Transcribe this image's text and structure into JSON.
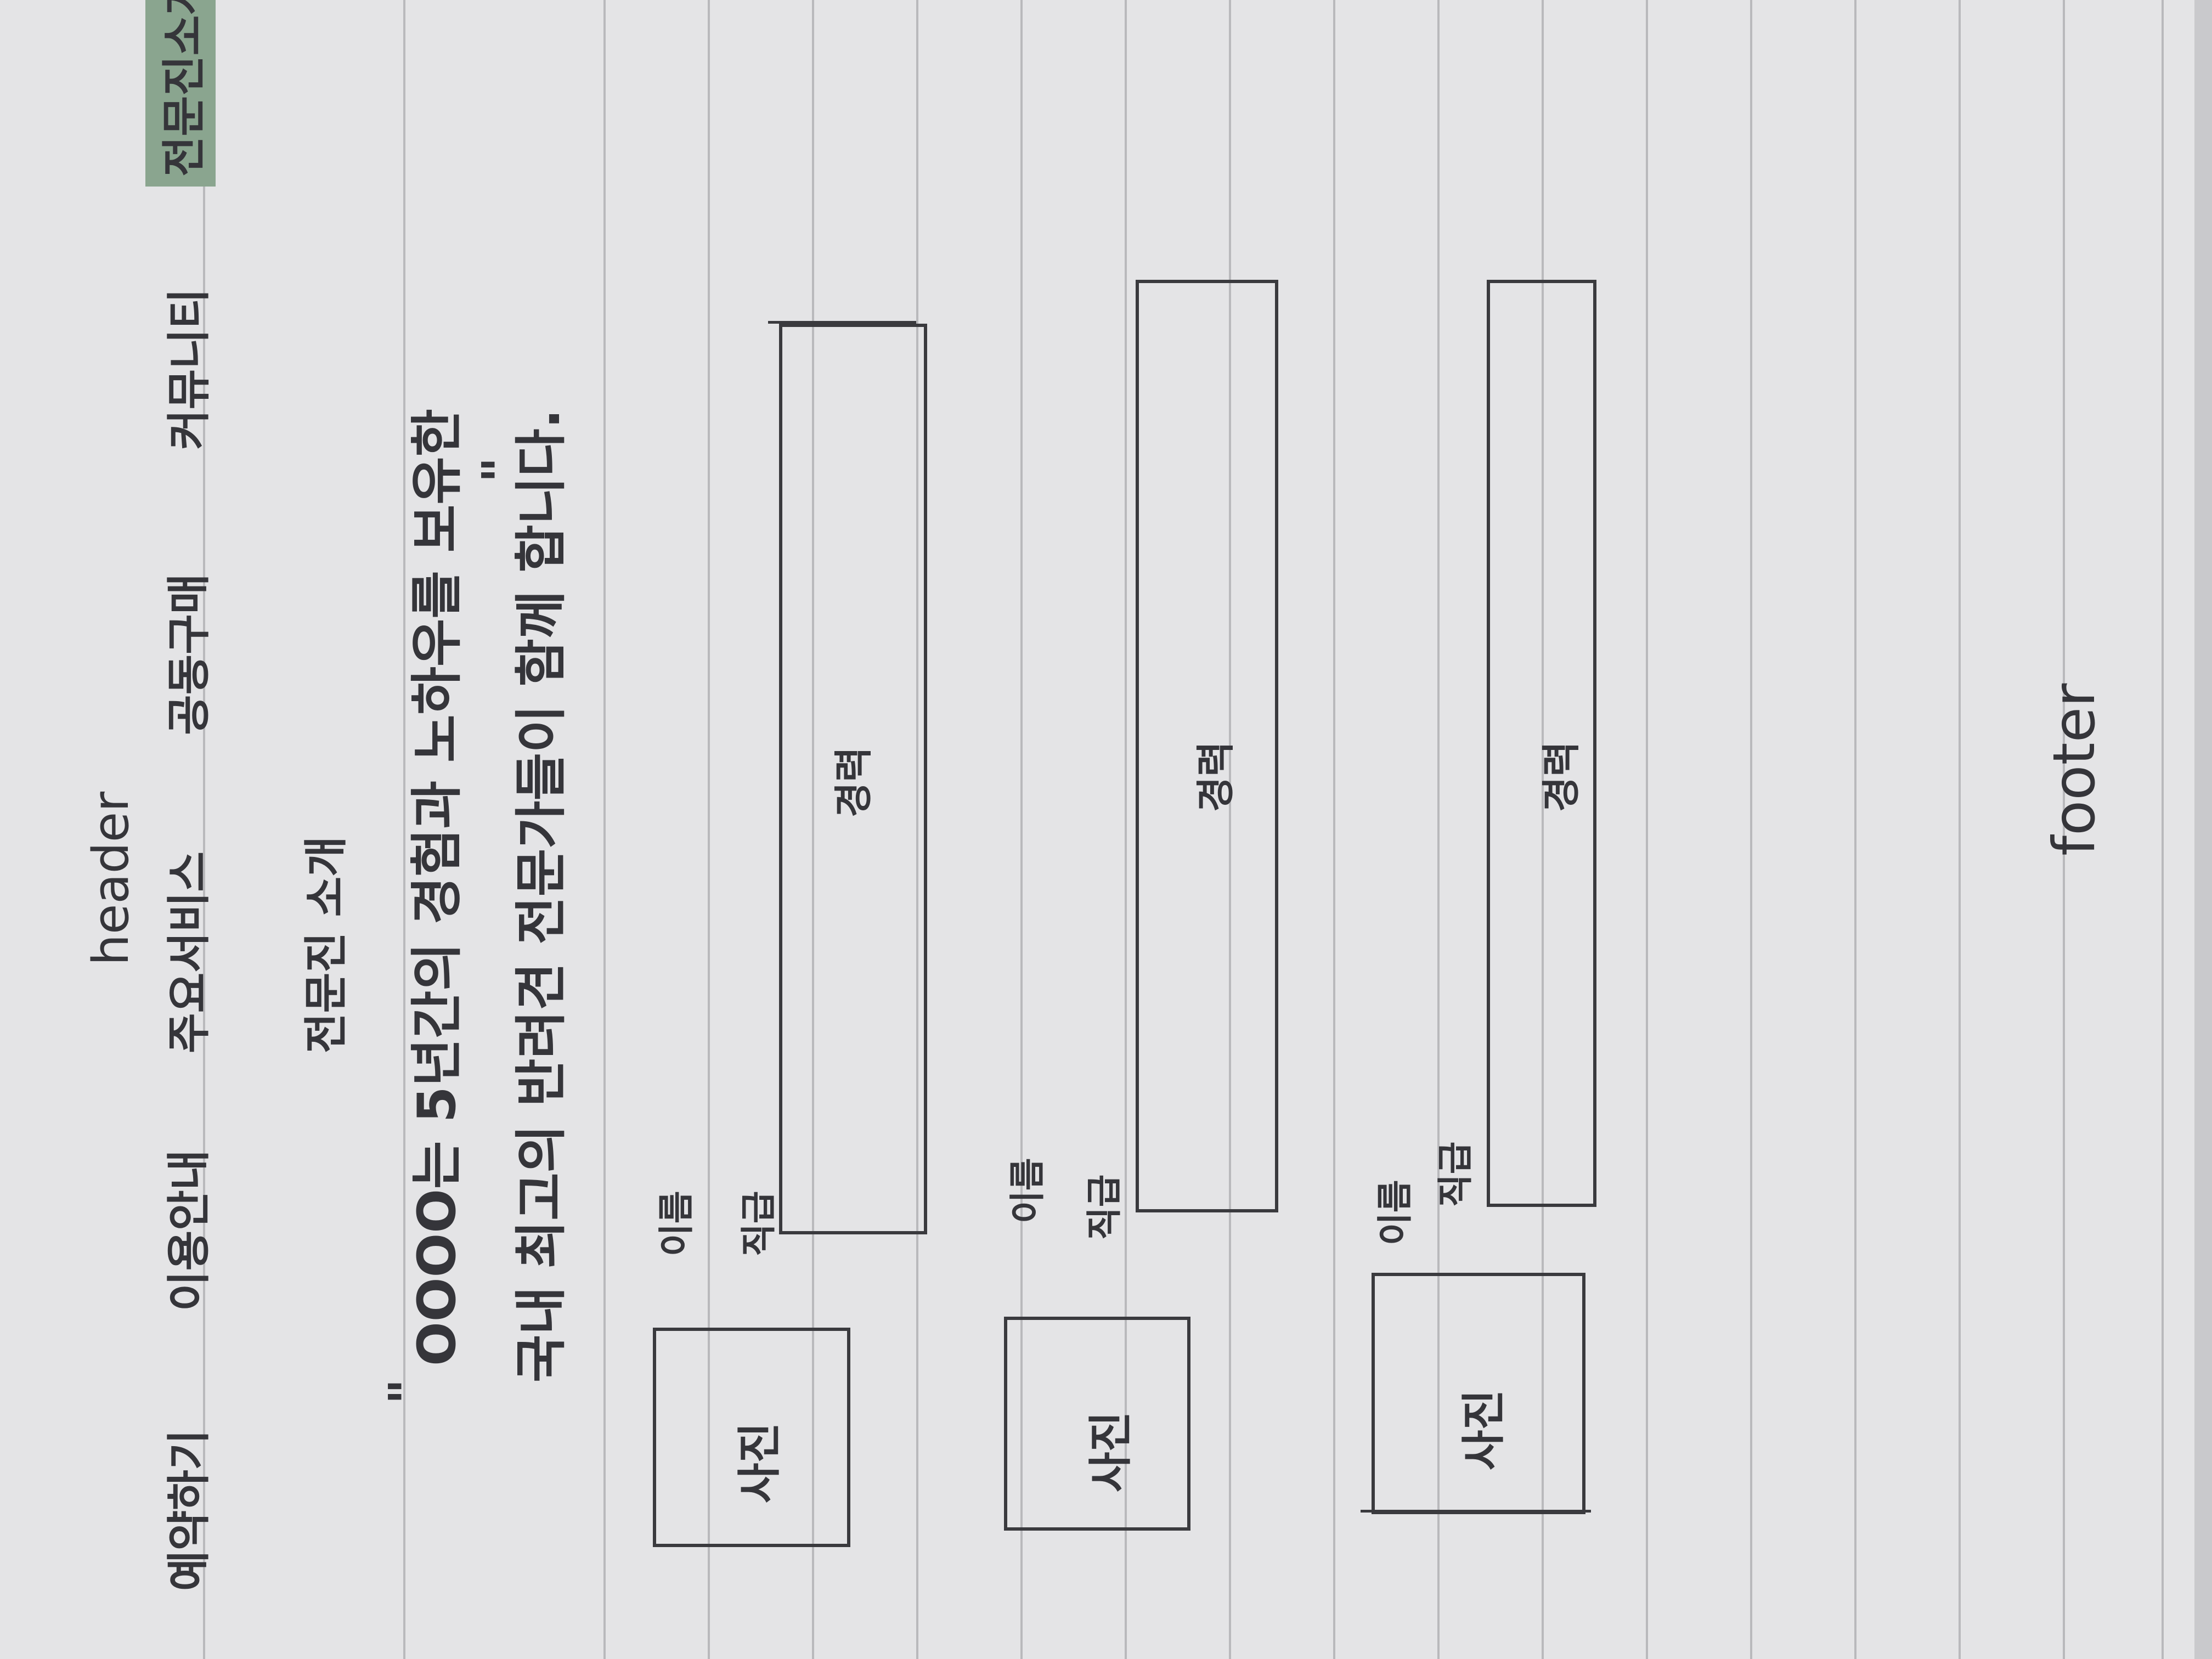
{
  "header_label": "header",
  "nav": {
    "items": [
      {
        "label": "예약하기",
        "active": false
      },
      {
        "label": "이용안내",
        "active": false
      },
      {
        "label": "주요서비스",
        "active": false
      },
      {
        "label": "공동구매",
        "active": false
      },
      {
        "label": "커뮤니티",
        "active": false
      },
      {
        "label": "전문진소개",
        "active": true
      }
    ],
    "active_color": "#8aa58f"
  },
  "section_title": "전문진 소개",
  "quote": {
    "open_mark": "\"",
    "close_mark": "\"",
    "line1": "OOOO는 5년간의 경험과 노하우를 보유한",
    "line2": "국내 최고의 반려견 전문가들이 함께 합니다."
  },
  "profiles": [
    {
      "photo_label": "사진",
      "name_label": "이름",
      "position_label": "직급",
      "career_label": "경력"
    },
    {
      "photo_label": "사진",
      "name_label": "이름",
      "position_label": "직급",
      "career_label": "경력"
    },
    {
      "photo_label": "사진",
      "name_label": "이름",
      "position_label": "직급",
      "career_label": "경력"
    }
  ],
  "footer_label": "footer"
}
